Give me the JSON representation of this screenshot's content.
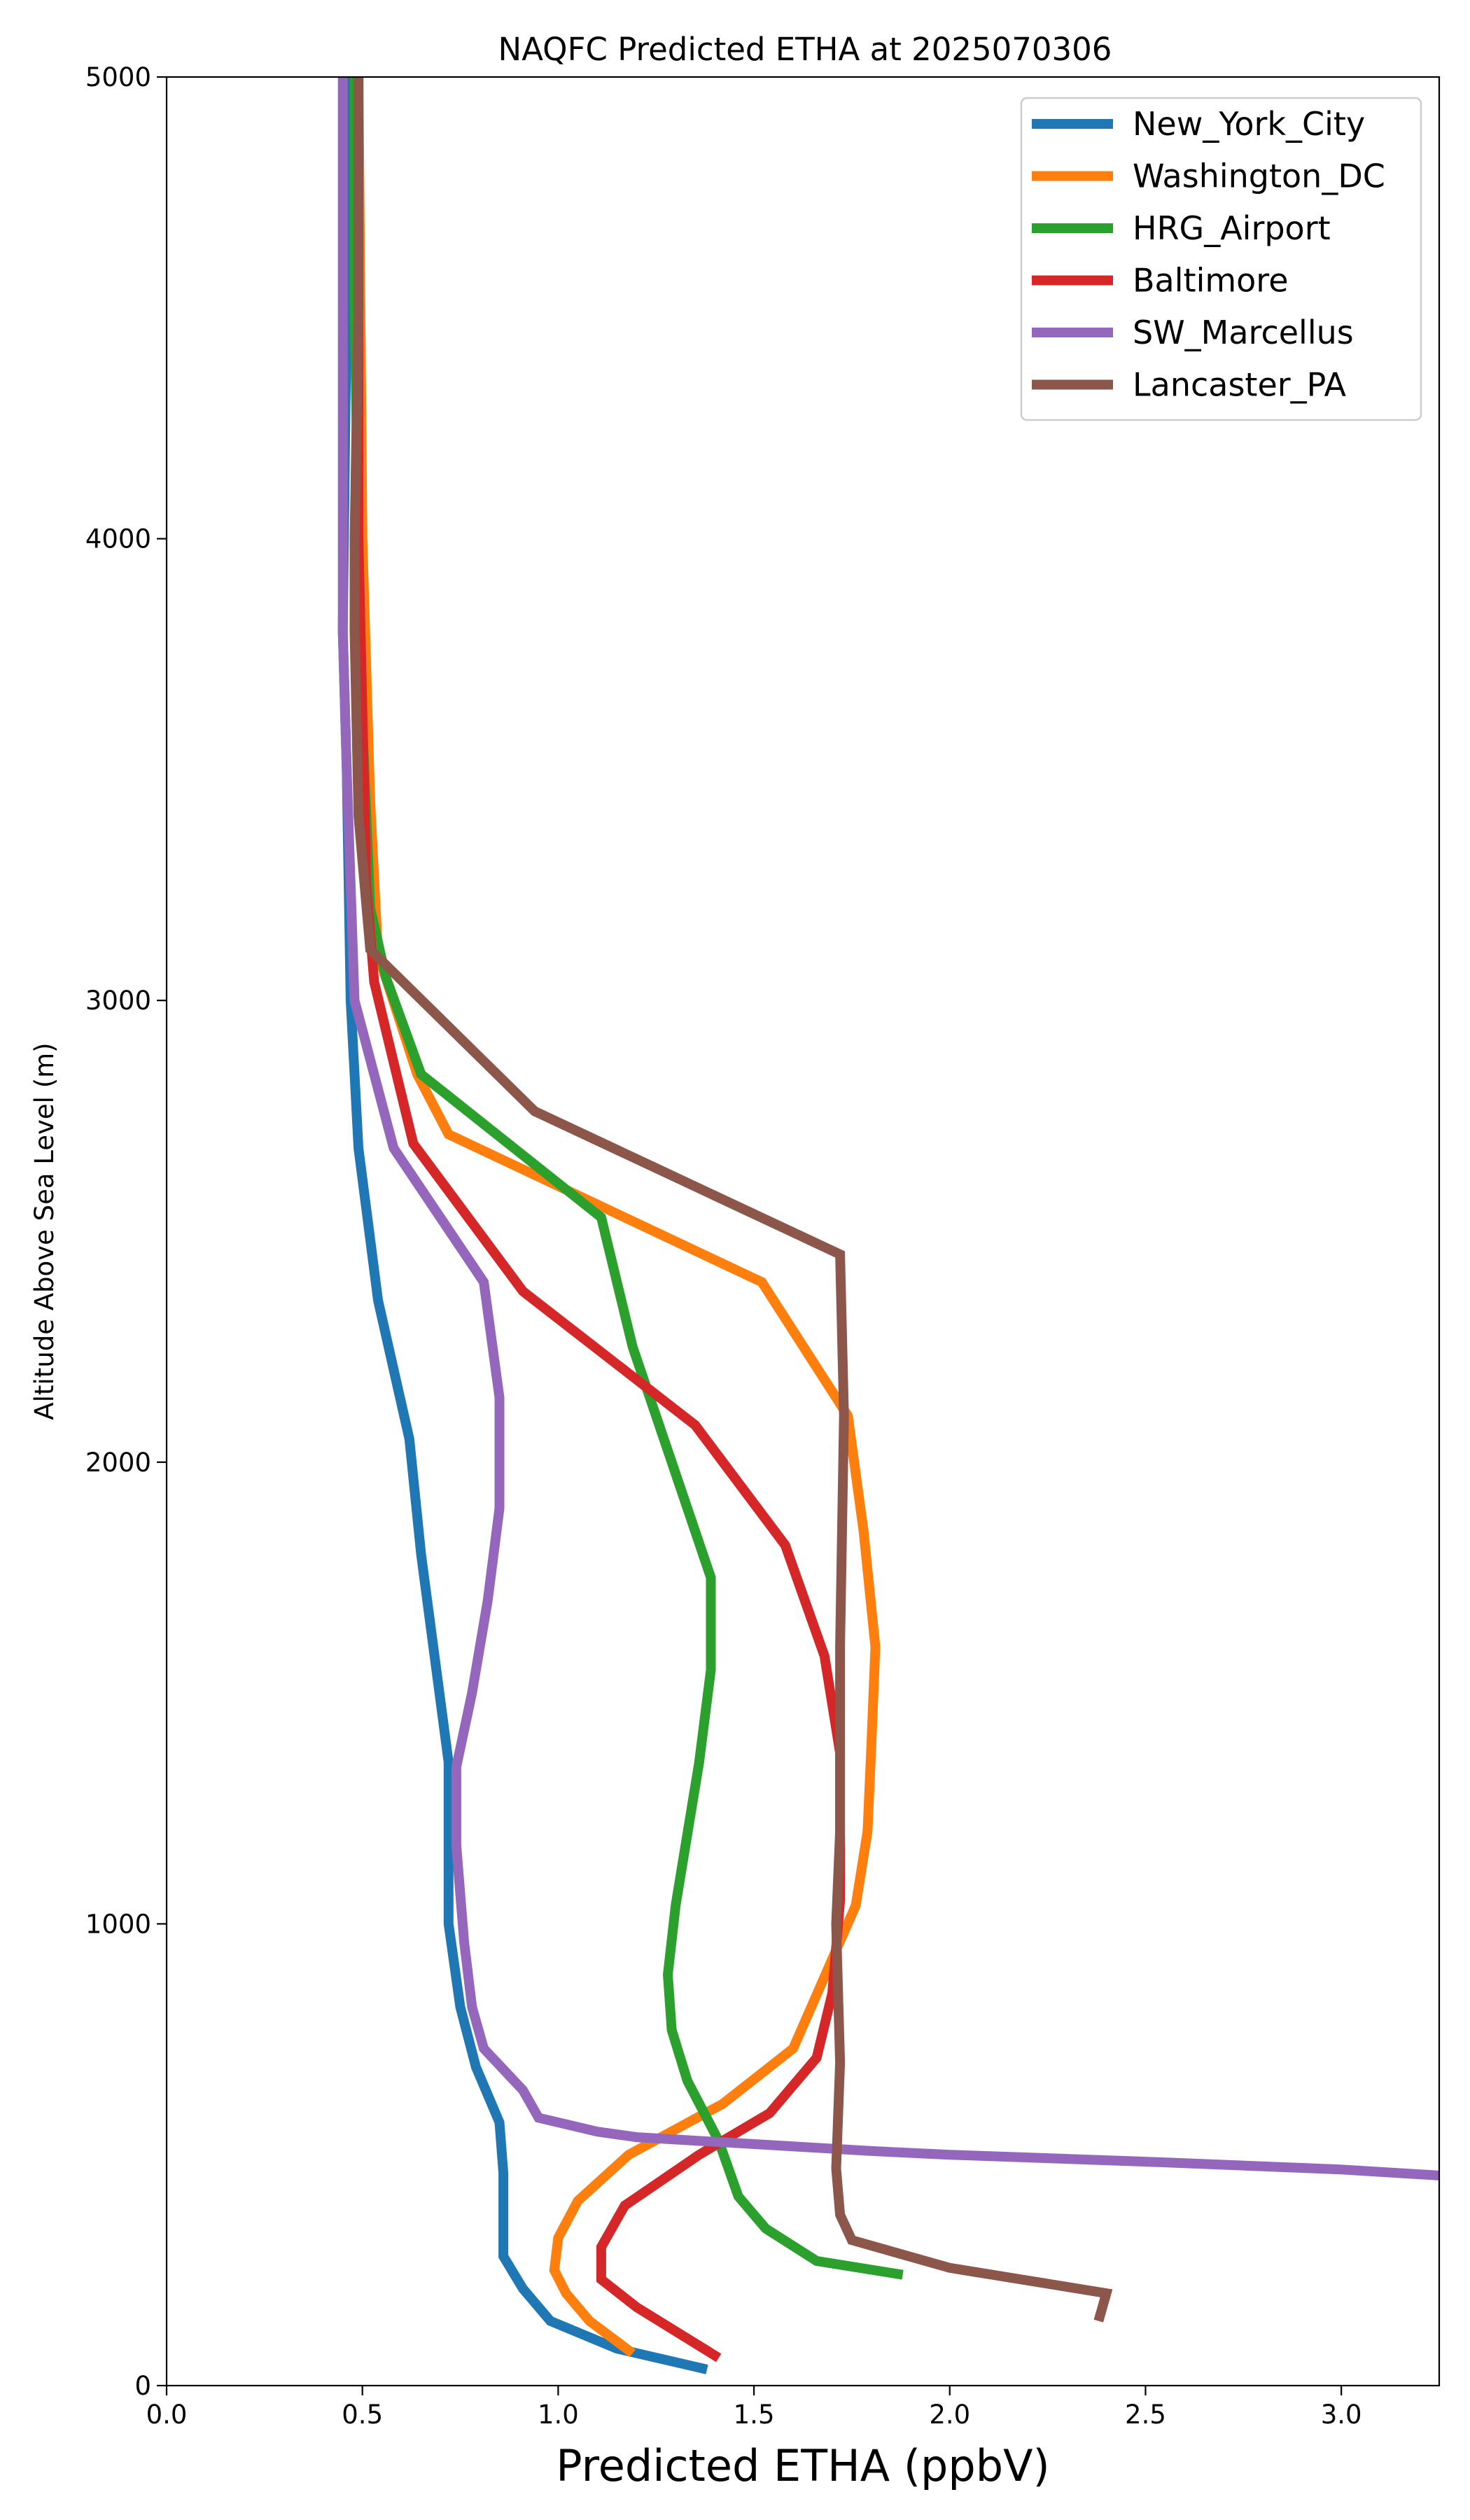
{
  "chart_data": {
    "type": "line",
    "title": "NAQFC Predicted ETHA at 2025070306",
    "xlabel": "Predicted ETHA (ppbV)",
    "ylabel": "Altitude Above Sea Level (m)",
    "xlim": [
      0.0,
      3.25
    ],
    "ylim": [
      0,
      5000
    ],
    "xticks": [
      "0.0",
      "0.5",
      "1.0",
      "1.5",
      "2.0",
      "2.5",
      "3.0"
    ],
    "yticks": [
      "0",
      "1000",
      "2000",
      "3000",
      "4000",
      "5000"
    ],
    "grid": false,
    "legend_position": "upper right",
    "series": [
      {
        "name": "New_York_City",
        "color": "#1f77b4",
        "points": [
          [
            1.38,
            35
          ],
          [
            1.15,
            80
          ],
          [
            0.98,
            140
          ],
          [
            0.91,
            210
          ],
          [
            0.86,
            280
          ],
          [
            0.86,
            350
          ],
          [
            0.86,
            460
          ],
          [
            0.85,
            570
          ],
          [
            0.79,
            690
          ],
          [
            0.75,
            820
          ],
          [
            0.72,
            1000
          ],
          [
            0.72,
            1350
          ],
          [
            0.65,
            1800
          ],
          [
            0.62,
            2050
          ],
          [
            0.54,
            2350
          ],
          [
            0.49,
            2680
          ],
          [
            0.47,
            3000
          ],
          [
            0.46,
            3500
          ],
          [
            0.45,
            3800
          ],
          [
            0.46,
            4500
          ],
          [
            0.47,
            5000
          ]
        ]
      },
      {
        "name": "Washington_DC",
        "color": "#ff7f0e",
        "points": [
          [
            1.19,
            70
          ],
          [
            1.08,
            140
          ],
          [
            1.02,
            200
          ],
          [
            0.99,
            250
          ],
          [
            1.0,
            320
          ],
          [
            1.05,
            400
          ],
          [
            1.18,
            500
          ],
          [
            1.42,
            610
          ],
          [
            1.6,
            730
          ],
          [
            1.76,
            1040
          ],
          [
            1.79,
            1200
          ],
          [
            1.8,
            1390
          ],
          [
            1.81,
            1600
          ],
          [
            1.78,
            1850
          ],
          [
            1.74,
            2100
          ],
          [
            1.52,
            2390
          ],
          [
            0.72,
            2710
          ],
          [
            0.64,
            2840
          ],
          [
            0.54,
            3100
          ],
          [
            0.52,
            3430
          ],
          [
            0.5,
            4000
          ],
          [
            0.49,
            5000
          ]
        ]
      },
      {
        "name": "HRG_Airport",
        "color": "#2ca02c",
        "points": [
          [
            1.88,
            240
          ],
          [
            1.66,
            270
          ],
          [
            1.53,
            340
          ],
          [
            1.46,
            410
          ],
          [
            1.41,
            530
          ],
          [
            1.33,
            660
          ],
          [
            1.29,
            770
          ],
          [
            1.28,
            890
          ],
          [
            1.3,
            1040
          ],
          [
            1.36,
            1350
          ],
          [
            1.39,
            1550
          ],
          [
            1.39,
            1750
          ],
          [
            1.19,
            2250
          ],
          [
            1.11,
            2530
          ],
          [
            0.65,
            2840
          ],
          [
            0.56,
            3050
          ],
          [
            0.52,
            3200
          ],
          [
            0.5,
            3600
          ],
          [
            0.49,
            4000
          ],
          [
            0.48,
            4500
          ],
          [
            0.48,
            5000
          ]
        ]
      },
      {
        "name": "Baltimore",
        "color": "#d62728",
        "points": [
          [
            1.41,
            60
          ],
          [
            1.2,
            170
          ],
          [
            1.11,
            230
          ],
          [
            1.11,
            300
          ],
          [
            1.17,
            390
          ],
          [
            1.36,
            500
          ],
          [
            1.54,
            590
          ],
          [
            1.66,
            710
          ],
          [
            1.7,
            850
          ],
          [
            1.72,
            1050
          ],
          [
            1.72,
            1370
          ],
          [
            1.68,
            1580
          ],
          [
            1.58,
            1820
          ],
          [
            1.35,
            2080
          ],
          [
            0.91,
            2370
          ],
          [
            0.63,
            2690
          ],
          [
            0.53,
            3040
          ],
          [
            0.51,
            3250
          ],
          [
            0.49,
            4000
          ],
          [
            0.49,
            4500
          ],
          [
            0.49,
            5000
          ]
        ]
      },
      {
        "name": "SW_Marcellus",
        "color": "#9467bd",
        "points": [
          [
            3.25,
            455
          ],
          [
            3.0,
            468
          ],
          [
            2.5,
            485
          ],
          [
            2.0,
            500
          ],
          [
            1.8,
            508
          ],
          [
            1.6,
            518
          ],
          [
            1.2,
            538
          ],
          [
            1.1,
            550
          ],
          [
            0.95,
            580
          ],
          [
            0.91,
            640
          ],
          [
            0.81,
            730
          ],
          [
            0.78,
            820
          ],
          [
            0.76,
            960
          ],
          [
            0.74,
            1170
          ],
          [
            0.74,
            1340
          ],
          [
            0.78,
            1500
          ],
          [
            0.82,
            1700
          ],
          [
            0.85,
            1900
          ],
          [
            0.85,
            2140
          ],
          [
            0.81,
            2390
          ],
          [
            0.58,
            2680
          ],
          [
            0.48,
            3000
          ],
          [
            0.46,
            3500
          ],
          [
            0.45,
            3800
          ],
          [
            0.45,
            4500
          ],
          [
            0.45,
            5000
          ]
        ]
      },
      {
        "name": "Lancaster_PA",
        "color": "#8c564b",
        "points": [
          [
            2.38,
            140
          ],
          [
            2.4,
            200
          ],
          [
            2.0,
            255
          ],
          [
            1.75,
            315
          ],
          [
            1.72,
            370
          ],
          [
            1.71,
            470
          ],
          [
            1.72,
            700
          ],
          [
            1.71,
            1000
          ],
          [
            1.72,
            1200
          ],
          [
            1.72,
            1600
          ],
          [
            1.73,
            2100
          ],
          [
            1.72,
            2450
          ],
          [
            0.94,
            2760
          ],
          [
            0.52,
            3110
          ],
          [
            0.49,
            3400
          ],
          [
            0.48,
            3800
          ],
          [
            0.48,
            4000
          ],
          [
            0.49,
            4500
          ],
          [
            0.49,
            5000
          ]
        ]
      }
    ]
  }
}
